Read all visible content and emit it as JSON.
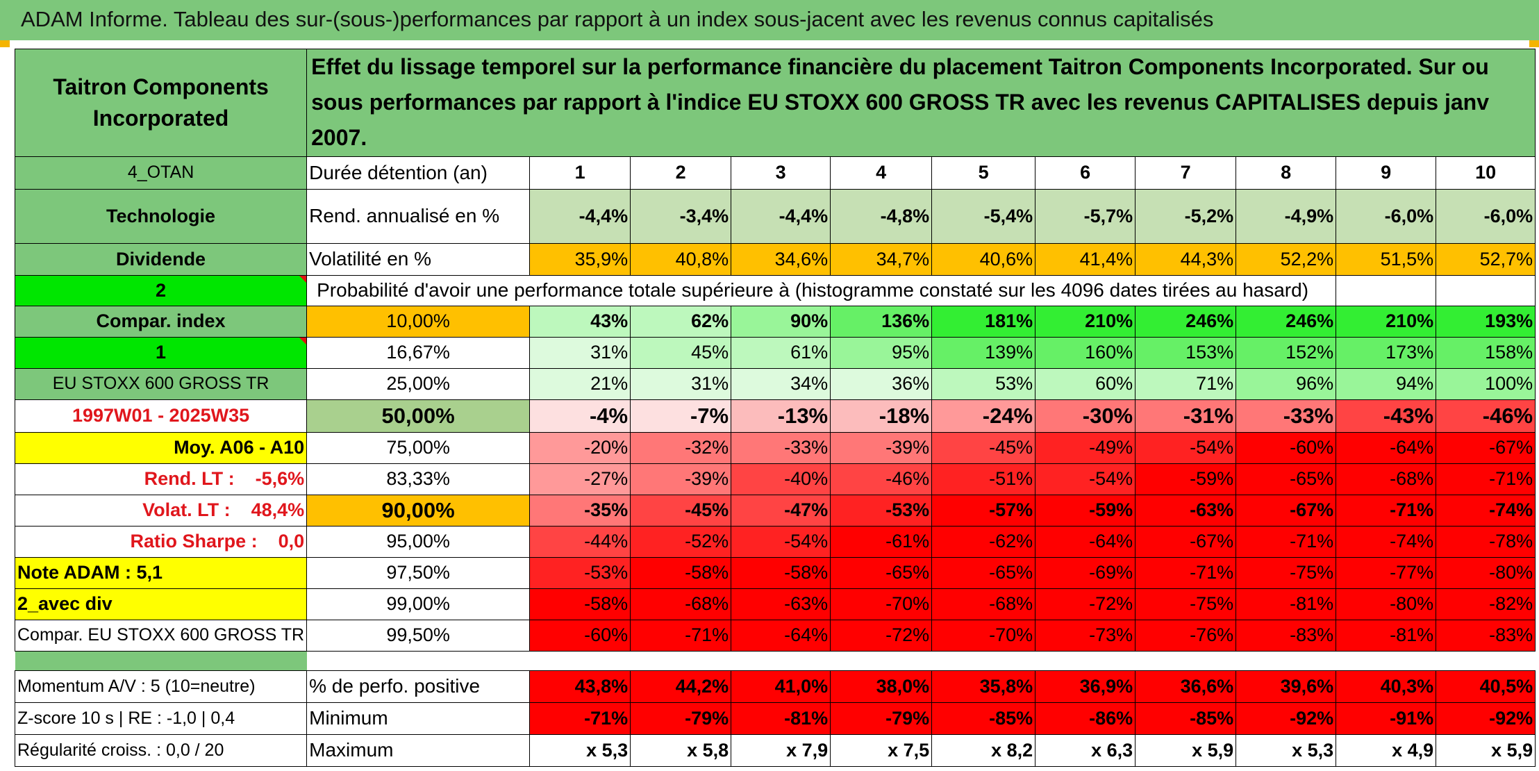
{
  "title": "ADAM Informe. Tableau des sur-(sous-)performances par rapport à un index sous-jacent avec les revenus connus capitalisés",
  "left": {
    "company": "Taitron Components Incorporated",
    "code": "4_OTAN",
    "sector": "Technologie",
    "dividend": "Dividende",
    "mode_value": "2",
    "compar_index": "Compar. index",
    "index_value": "1",
    "index_name": "EU STOXX 600 GROSS TR",
    "period": "1997W01 - 2025W35",
    "moy": "Moy. A06 - A10",
    "rend_lt": "Rend. LT :    -5,6%",
    "volat_lt": "Volat. LT :    48,4%",
    "sharpe": "Ratio Sharpe :    0,0",
    "note": "Note ADAM : 5,1",
    "avec_div": "2_avec div",
    "compar_name": "Compar. EU STOXX 600 GROSS TR",
    "momentum": "Momentum A/V : 5 (10=neutre)",
    "zscore": "Z-score 10 s | RE : -1,0 | 0,4",
    "regularite": "Régularité croiss. : 0,0 / 20"
  },
  "description": "Effet du lissage temporel sur la performance financière du placement Taitron Components Incorporated. Sur ou sous performances par rapport à l'indice EU STOXX 600 GROSS TR avec les revenus CAPITALISES depuis janv 2007.",
  "header": {
    "duration_label": "Durée détention (an)",
    "years": [
      "1",
      "2",
      "3",
      "4",
      "5",
      "6",
      "7",
      "8",
      "9",
      "10"
    ]
  },
  "rend": {
    "label": "Rend. annualisé en %",
    "values": [
      "-4,4%",
      "-3,4%",
      "-4,4%",
      "-4,8%",
      "-5,4%",
      "-5,7%",
      "-5,2%",
      "-4,9%",
      "-6,0%",
      "-6,0%"
    ]
  },
  "vol": {
    "label": "Volatilité en %",
    "values": [
      "35,9%",
      "40,8%",
      "34,6%",
      "34,7%",
      "40,6%",
      "41,4%",
      "44,3%",
      "52,2%",
      "51,5%",
      "52,7%"
    ]
  },
  "prob_label": "Probabilité d'avoir une performance totale supérieure à (histogramme constaté sur les 4096 dates tirées au hasard)",
  "prob_rows": [
    {
      "pct": "10,00%",
      "values": [
        "43%",
        "62%",
        "90%",
        "136%",
        "181%",
        "210%",
        "246%",
        "246%",
        "210%",
        "193%"
      ]
    },
    {
      "pct": "16,67%",
      "values": [
        "31%",
        "45%",
        "61%",
        "95%",
        "139%",
        "160%",
        "153%",
        "152%",
        "173%",
        "158%"
      ]
    },
    {
      "pct": "25,00%",
      "values": [
        "21%",
        "31%",
        "34%",
        "36%",
        "53%",
        "60%",
        "71%",
        "96%",
        "94%",
        "100%"
      ]
    },
    {
      "pct": "50,00%",
      "values": [
        "-4%",
        "-7%",
        "-13%",
        "-18%",
        "-24%",
        "-30%",
        "-31%",
        "-33%",
        "-43%",
        "-46%"
      ]
    },
    {
      "pct": "75,00%",
      "values": [
        "-20%",
        "-32%",
        "-33%",
        "-39%",
        "-45%",
        "-49%",
        "-54%",
        "-60%",
        "-64%",
        "-67%"
      ]
    },
    {
      "pct": "83,33%",
      "values": [
        "-27%",
        "-39%",
        "-40%",
        "-46%",
        "-51%",
        "-54%",
        "-59%",
        "-65%",
        "-68%",
        "-71%"
      ]
    },
    {
      "pct": "90,00%",
      "values": [
        "-35%",
        "-45%",
        "-47%",
        "-53%",
        "-57%",
        "-59%",
        "-63%",
        "-67%",
        "-71%",
        "-74%"
      ]
    },
    {
      "pct": "95,00%",
      "values": [
        "-44%",
        "-52%",
        "-54%",
        "-61%",
        "-62%",
        "-64%",
        "-67%",
        "-71%",
        "-74%",
        "-78%"
      ]
    },
    {
      "pct": "97,50%",
      "values": [
        "-53%",
        "-58%",
        "-58%",
        "-65%",
        "-65%",
        "-69%",
        "-71%",
        "-75%",
        "-77%",
        "-80%"
      ]
    },
    {
      "pct": "99,00%",
      "values": [
        "-58%",
        "-68%",
        "-63%",
        "-70%",
        "-68%",
        "-72%",
        "-75%",
        "-81%",
        "-80%",
        "-82%"
      ]
    },
    {
      "pct": "99,50%",
      "values": [
        "-60%",
        "-71%",
        "-64%",
        "-72%",
        "-70%",
        "-73%",
        "-76%",
        "-83%",
        "-81%",
        "-83%"
      ]
    }
  ],
  "bottom": [
    {
      "label": "% de perfo. positive",
      "values": [
        "43,8%",
        "44,2%",
        "41,0%",
        "38,0%",
        "35,8%",
        "36,9%",
        "36,6%",
        "39,6%",
        "40,3%",
        "40,5%"
      ]
    },
    {
      "label": "Minimum",
      "values": [
        "-71%",
        "-79%",
        "-81%",
        "-79%",
        "-85%",
        "-86%",
        "-85%",
        "-92%",
        "-91%",
        "-92%"
      ]
    },
    {
      "label": "Maximum",
      "values": [
        "x 5,3",
        "x 5,8",
        "x 7,9",
        "x 7,5",
        "x 8,2",
        "x 6,3",
        "x 5,9",
        "x 5,3",
        "x 4,9",
        "x 5,9"
      ]
    }
  ],
  "colors": {
    "title_green": "#7dc77b",
    "header_green": "#7dc77b",
    "bright_green": "#00e600",
    "orange": "#ffc000",
    "yellow": "#ffff00",
    "red_text": "#e0161c",
    "deep_red": "#ff0000"
  }
}
